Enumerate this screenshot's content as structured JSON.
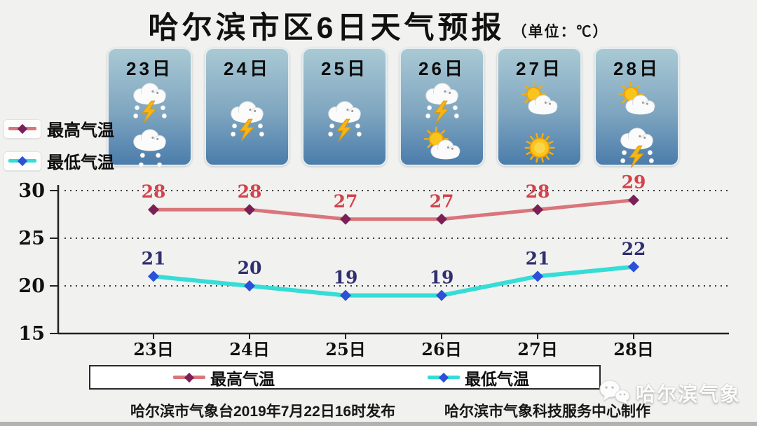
{
  "title": "哈尔滨市区6日天气预报",
  "unit_label": "（单位：℃）",
  "days": [
    {
      "label": "23日",
      "icons": [
        "thunderstorm",
        "rain"
      ]
    },
    {
      "label": "24日",
      "icons": [
        "thunderstorm"
      ]
    },
    {
      "label": "25日",
      "icons": [
        "thunderstorm"
      ]
    },
    {
      "label": "26日",
      "icons": [
        "thunderstorm",
        "sun-cloud"
      ]
    },
    {
      "label": "27日",
      "icons": [
        "sun-cloud",
        "sun"
      ]
    },
    {
      "label": "28日",
      "icons": [
        "sun-cloud",
        "thunderstorm"
      ]
    }
  ],
  "chart_data": {
    "type": "line",
    "categories": [
      "23日",
      "24日",
      "25日",
      "26日",
      "27日",
      "28日"
    ],
    "series": [
      {
        "name": "最高气温",
        "values": [
          28,
          28,
          27,
          27,
          28,
          29
        ],
        "line_color": "#d9757b",
        "marker_color": "#7b2057",
        "label_color": "#d2434b"
      },
      {
        "name": "最低气温",
        "values": [
          21,
          20,
          19,
          19,
          21,
          22
        ],
        "line_color": "#35ddd6",
        "marker_color": "#2c50d6",
        "label_color": "#2f2f70"
      }
    ],
    "ylim": [
      15,
      30
    ],
    "yticks": [
      30,
      25,
      20,
      15
    ],
    "grid": "dotted-horizontal",
    "legend_position": "bottom"
  },
  "footer": {
    "left": "哈尔滨市气象台2019年7月22日16时发布",
    "right": "哈尔滨市气象科技服务中心制作"
  },
  "watermark": {
    "icon": "wechat-icon",
    "text": "哈尔滨气象"
  },
  "colors": {
    "card_top": "#a9c9d4",
    "card_bottom": "#4b7cab",
    "background": "#f1f1ef",
    "axis": "#222222"
  }
}
